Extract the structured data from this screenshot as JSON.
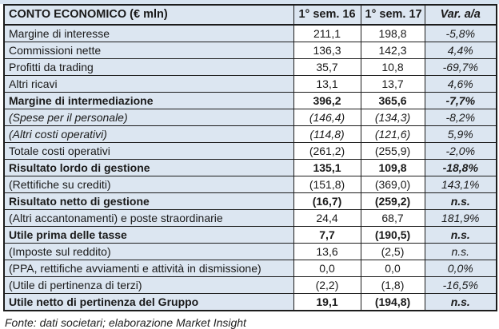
{
  "colors": {
    "cell_blue": "#dce6f1",
    "border": "#1c1c1c",
    "top_strip": "#d7e3f0",
    "value_cell": "#ffffff"
  },
  "header": {
    "label": "CONTO ECONOMICO (€ mln)",
    "col_sem16": "1° sem. 16",
    "col_sem17": "1° sem. 17",
    "col_var": "Var. a/a"
  },
  "rows": [
    {
      "label": "Margine di interesse",
      "sem16": "211,1",
      "sem17": "198,8",
      "var": "-5,8%",
      "style": "regular"
    },
    {
      "label": "Commissioni nette",
      "sem16": "136,3",
      "sem17": "142,3",
      "var": "4,4%",
      "style": "regular"
    },
    {
      "label": "Profitti da trading",
      "sem16": "35,7",
      "sem17": "10,8",
      "var": "-69,7%",
      "style": "regular"
    },
    {
      "label": "Altri ricavi",
      "sem16": "13,1",
      "sem17": "13,7",
      "var": "4,6%",
      "style": "regular"
    },
    {
      "label": "Margine di intermediazione",
      "sem16": "396,2",
      "sem17": "365,6",
      "var": "-7,7%",
      "style": "bold"
    },
    {
      "label": "(Spese per il personale)",
      "sem16": "(146,4)",
      "sem17": "(134,3)",
      "var": "-8,2%",
      "style": "italic"
    },
    {
      "label": "(Altri costi operativi)",
      "sem16": "(114,8)",
      "sem17": "(121,6)",
      "var": "5,9%",
      "style": "italic"
    },
    {
      "label": "Totale costi operativi",
      "sem16": "(261,2)",
      "sem17": "(255,9)",
      "var": "-2,0%",
      "style": "regular"
    },
    {
      "label": "Risultato lordo di gestione",
      "sem16": "135,1",
      "sem17": "109,8",
      "var": "-18,8%",
      "style": "bold"
    },
    {
      "label": "(Rettifiche su crediti)",
      "sem16": "(151,8)",
      "sem17": "(369,0)",
      "var": "143,1%",
      "style": "regular"
    },
    {
      "label": "Risultato netto di gestione",
      "sem16": "(16,7)",
      "sem17": "(259,2)",
      "var": "n.s.",
      "style": "bold"
    },
    {
      "label": "(Altri accantonamenti) e poste straordinarie",
      "sem16": "24,4",
      "sem17": "68,7",
      "var": "181,9%",
      "style": "regular"
    },
    {
      "label": "Utile prima delle tasse",
      "sem16": "7,7",
      "sem17": "(190,5)",
      "var": "n.s.",
      "style": "bold"
    },
    {
      "label": "(Imposte sul reddito)",
      "sem16": "13,6",
      "sem17": "(2,5)",
      "var": "n.s.",
      "style": "regular"
    },
    {
      "label": "(PPA, rettifiche avviamenti e attività in dismissione)",
      "sem16": "0,0",
      "sem17": "0,0",
      "var": "0,0%",
      "style": "regular"
    },
    {
      "label": "(Utile di pertinenza di terzi)",
      "sem16": "(2,2)",
      "sem17": "(1,8)",
      "var": "-16,5%",
      "style": "regular"
    },
    {
      "label": "Utile netto di pertinenza del Gruppo",
      "sem16": "19,1",
      "sem17": "(194,8)",
      "var": "n.s.",
      "style": "bold"
    }
  ],
  "footer": {
    "source": "Fonte: dati societari; elaborazione Market Insight"
  }
}
